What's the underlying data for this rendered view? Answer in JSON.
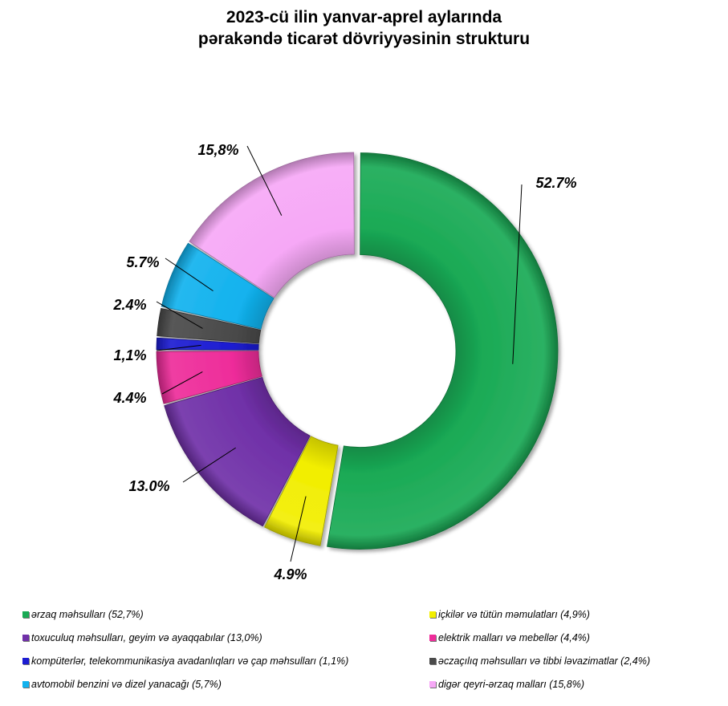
{
  "title": {
    "line1": "2023-cü ilin yanvar-aprel aylarında",
    "line2": "pərakəndə ticarət dövriyyəsinin strukturu"
  },
  "chart_data": {
    "type": "donut",
    "title": "2023-cü ilin yanvar-aprel aylarında pərakəndə ticarət dövriyyəsinin strukturu",
    "unit": "%",
    "legend_position": "bottom",
    "series": [
      {
        "name": "ərzaq məhsulları (52,7%)",
        "value": 52.7,
        "label": "52.7%",
        "color": "#1aaa55"
      },
      {
        "name": "içkilər və tütün məmulatları (4,9%)",
        "value": 4.9,
        "label": "4.9%",
        "color": "#f2ee00"
      },
      {
        "name": "toxuculuq məhsulları, geyim və ayaqqabılar (13,0%)",
        "value": 13.0,
        "label": "13.0%",
        "color": "#7030a8"
      },
      {
        "name": "elektrik malları və mebellər (4,4%)",
        "value": 4.4,
        "label": "4.4%",
        "color": "#ee2c9a"
      },
      {
        "name": "kompüterlər, telekommunikasiya avadanlıqları və çap məhsulları (1,1%)",
        "value": 1.1,
        "label": "1,1%",
        "color": "#1c1cd2"
      },
      {
        "name": "əczaçılıq məhsulları və tibbi ləvazimatlar (2,4%)",
        "value": 2.4,
        "label": "2.4%",
        "color": "#4a4a4a"
      },
      {
        "name": "avtomobil benzini və dizel yanacağı (5,7%)",
        "value": 5.7,
        "label": "5.7%",
        "color": "#12b2ee"
      },
      {
        "name": "digər qeyri-ərzaq malları (15,8%)",
        "value": 15.8,
        "label": "15,8%",
        "color": "#f6a8f6"
      }
    ]
  }
}
